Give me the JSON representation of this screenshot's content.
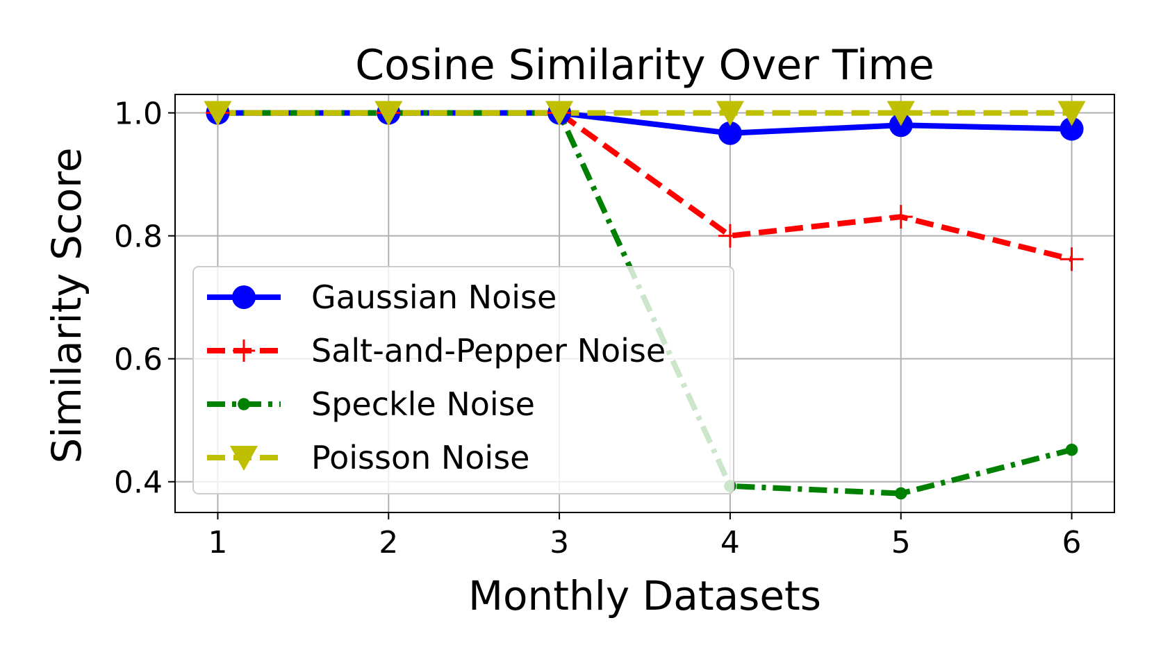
{
  "chart_data": {
    "type": "line",
    "title": "Cosine Similarity Over Time",
    "xlabel": "Monthly Datasets",
    "ylabel": "Similarity Score",
    "x": [
      1,
      2,
      3,
      4,
      5,
      6
    ],
    "xticks": [
      "1",
      "2",
      "3",
      "4",
      "5",
      "6"
    ],
    "yticks": [
      "0.4",
      "0.6",
      "0.8",
      "1.0"
    ],
    "ytick_values": [
      0.4,
      0.6,
      0.8,
      1.0
    ],
    "xlim": [
      0.75,
      6.25
    ],
    "ylim": [
      0.35,
      1.03
    ],
    "grid": true,
    "legend_position": "center-left",
    "series": [
      {
        "name": "Gaussian Noise",
        "values": [
          1.0,
          1.0,
          1.0,
          0.967,
          0.98,
          0.974
        ],
        "color": "#0000ff",
        "linestyle": "solid",
        "marker": "circle"
      },
      {
        "name": "Salt-and-Pepper Noise",
        "values": [
          1.0,
          1.0,
          1.0,
          0.8,
          0.831,
          0.762
        ],
        "color": "#ff0000",
        "linestyle": "dashed",
        "marker": "plus"
      },
      {
        "name": "Speckle Noise",
        "values": [
          1.0,
          1.0,
          1.0,
          0.393,
          0.381,
          0.452
        ],
        "color": "#008000",
        "linestyle": "dashdot",
        "marker": "dot"
      },
      {
        "name": "Poisson Noise",
        "values": [
          1.0,
          1.0,
          1.0,
          1.0,
          1.0,
          1.0
        ],
        "color": "#bfbf00",
        "linestyle": "dashed",
        "marker": "triangle-down"
      }
    ]
  }
}
